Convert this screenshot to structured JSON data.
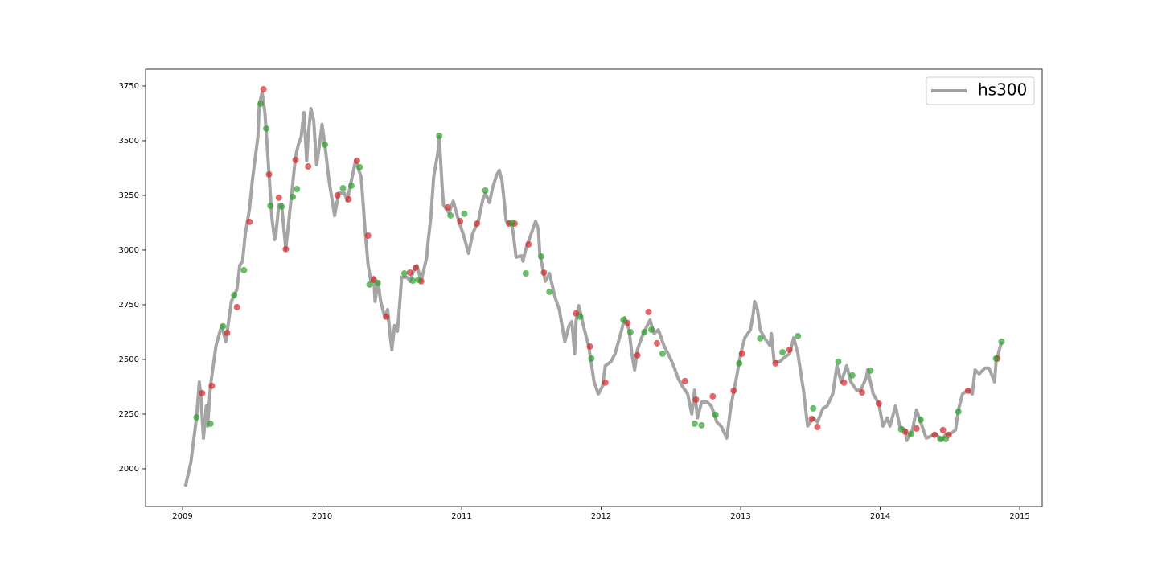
{
  "chart_data": {
    "type": "line",
    "series": [
      {
        "name": "hs300",
        "color": "#a0a0a0",
        "x": [
          2009.02,
          2009.06,
          2009.1,
          2009.12,
          2009.13,
          2009.15,
          2009.17,
          2009.18,
          2009.2,
          2009.24,
          2009.28,
          2009.31,
          2009.35,
          2009.39,
          2009.41,
          2009.43,
          2009.45,
          2009.48,
          2009.5,
          2009.54,
          2009.55,
          2009.57,
          2009.59,
          2009.61,
          2009.64,
          2009.66,
          2009.67,
          2009.69,
          2009.71,
          2009.74,
          2009.78,
          2009.81,
          2009.83,
          2009.85,
          2009.87,
          2009.89,
          2009.9,
          2009.92,
          2009.94,
          2009.96,
          2009.97,
          2010.0,
          2010.02,
          2010.05,
          2010.09,
          2010.12,
          2010.16,
          2010.18,
          2010.21,
          2010.24,
          2010.28,
          2010.31,
          2010.33,
          2010.35,
          2010.37,
          2010.38,
          2010.4,
          2010.42,
          2010.45,
          2010.47,
          2010.49,
          2010.5,
          2010.52,
          2010.54,
          2010.56,
          2010.57,
          2010.61,
          2010.63,
          2010.66,
          2010.68,
          2010.71,
          2010.75,
          2010.76,
          2010.78,
          2010.8,
          2010.83,
          2010.84,
          2010.86,
          2010.87,
          2010.91,
          2010.94,
          2010.98,
          2011.01,
          2011.05,
          2011.08,
          2011.12,
          2011.15,
          2011.17,
          2011.2,
          2011.22,
          2011.25,
          2011.27,
          2011.29,
          2011.32,
          2011.36,
          2011.37,
          2011.39,
          2011.43,
          2011.44,
          2011.46,
          2011.5,
          2011.53,
          2011.55,
          2011.56,
          2011.6,
          2011.63,
          2011.67,
          2011.7,
          2011.74,
          2011.77,
          2011.79,
          2011.81,
          2011.82,
          2011.84,
          2011.88,
          2011.91,
          2011.95,
          2011.98,
          2012.01,
          2012.03,
          2012.07,
          2012.1,
          2012.14,
          2012.17,
          2012.2,
          2012.22,
          2012.24,
          2012.26,
          2012.29,
          2012.33,
          2012.35,
          2012.38,
          2012.41,
          2012.45,
          2012.48,
          2012.52,
          2012.55,
          2012.58,
          2012.62,
          2012.65,
          2012.67,
          2012.69,
          2012.72,
          2012.76,
          2012.79,
          2012.83,
          2012.86,
          2012.9,
          2012.93,
          2012.97,
          2013.0,
          2013.03,
          2013.07,
          2013.09,
          2013.1,
          2013.12,
          2013.14,
          2013.17,
          2013.21,
          2013.22,
          2013.24,
          2013.28,
          2013.31,
          2013.35,
          2013.38,
          2013.41,
          2013.45,
          2013.48,
          2013.52,
          2013.55,
          2013.59,
          2013.62,
          2013.66,
          2013.69,
          2013.72,
          2013.76,
          2013.79,
          2013.83,
          2013.86,
          2013.9,
          2013.91,
          2013.95,
          2013.99,
          2014.02,
          2014.05,
          2014.07,
          2014.11,
          2014.14,
          2014.18,
          2014.19,
          2014.23,
          2014.26,
          2014.3,
          2014.33,
          2014.37,
          2014.4,
          2014.44,
          2014.47,
          2014.5,
          2014.54,
          2014.56,
          2014.59,
          2014.63,
          2014.66,
          2014.68,
          2014.71,
          2014.75,
          2014.78,
          2014.82,
          2014.83,
          2014.87
        ],
        "values": [
          1919,
          2030,
          2232,
          2397,
          2342,
          2140,
          2287,
          2195,
          2379,
          2563,
          2655,
          2581,
          2765,
          2820,
          2930,
          2949,
          3077,
          3188,
          3316,
          3518,
          3665,
          3721,
          3629,
          3445,
          3151,
          3048,
          3077,
          3206,
          3206,
          3004,
          3243,
          3427,
          3482,
          3518,
          3629,
          3408,
          3518,
          3647,
          3592,
          3390,
          3427,
          3574,
          3482,
          3316,
          3158,
          3261,
          3261,
          3224,
          3316,
          3408,
          3335,
          3077,
          2930,
          2857,
          2875,
          2765,
          2857,
          2765,
          2691,
          2728,
          2599,
          2544,
          2655,
          2629,
          2783,
          2875,
          2875,
          2857,
          2912,
          2930,
          2857,
          2967,
          3041,
          3151,
          3335,
          3445,
          3518,
          3298,
          3206,
          3169,
          3224,
          3132,
          3077,
          2985,
          3077,
          3132,
          3224,
          3261,
          3217,
          3279,
          3342,
          3364,
          3316,
          3132,
          3114,
          3077,
          2967,
          2974,
          2949,
          3004,
          3077,
          3132,
          3096,
          2985,
          2857,
          2893,
          2783,
          2728,
          2581,
          2655,
          2673,
          2526,
          2673,
          2746,
          2636,
          2563,
          2397,
          2342,
          2379,
          2471,
          2489,
          2526,
          2618,
          2691,
          2636,
          2526,
          2452,
          2544,
          2599,
          2655,
          2680,
          2618,
          2636,
          2563,
          2526,
          2471,
          2416,
          2379,
          2342,
          2250,
          2360,
          2232,
          2305,
          2305,
          2287,
          2213,
          2195,
          2140,
          2287,
          2416,
          2526,
          2599,
          2636,
          2710,
          2765,
          2728,
          2636,
          2599,
          2563,
          2618,
          2489,
          2489,
          2507,
          2526,
          2599,
          2526,
          2360,
          2195,
          2232,
          2213,
          2276,
          2287,
          2342,
          2471,
          2397,
          2471,
          2397,
          2360,
          2360,
          2416,
          2452,
          2342,
          2298,
          2195,
          2232,
          2195,
          2287,
          2195,
          2177,
          2129,
          2177,
          2269,
          2195,
          2140,
          2151,
          2159,
          2129,
          2159,
          2159,
          2177,
          2269,
          2342,
          2360,
          2342,
          2452,
          2434,
          2460,
          2460,
          2397,
          2489,
          2581
        ]
      }
    ],
    "scatter": [
      {
        "color": "#d62728",
        "x": [
          2009.14,
          2009.21,
          2009.32,
          2009.39,
          2009.48,
          2009.58,
          2009.62,
          2009.69,
          2009.74,
          2009.81,
          2009.9,
          2010.11,
          2010.19,
          2010.25,
          2010.33,
          2010.37,
          2010.46,
          2010.63,
          2010.67,
          2010.71,
          2010.9,
          2010.99,
          2011.11,
          2011.34,
          2011.38,
          2011.48,
          2011.59,
          2011.82,
          2011.92,
          2012.03,
          2012.19,
          2012.26,
          2012.34,
          2012.4,
          2012.6,
          2012.68,
          2012.8,
          2012.95,
          2013.01,
          2013.25,
          2013.35,
          2013.51,
          2013.55,
          2013.74,
          2013.87,
          2013.99,
          2014.18,
          2014.26,
          2014.39,
          2014.45,
          2014.49,
          2014.63,
          2014.84
        ],
        "values": [
          2346,
          2379,
          2621,
          2739,
          3129,
          3735,
          3346,
          3239,
          3004,
          3412,
          3382,
          3250,
          3232,
          3408,
          3066,
          2864,
          2695,
          2897,
          2919,
          2857,
          3195,
          3132,
          3121,
          3121,
          3121,
          3026,
          2897,
          2710,
          2559,
          2394,
          2666,
          2519,
          2717,
          2574,
          2401,
          2316,
          2331,
          2357,
          2526,
          2482,
          2544,
          2228,
          2191,
          2394,
          2349,
          2298,
          2169,
          2184,
          2155,
          2177,
          2155,
          2357,
          2504
        ]
      },
      {
        "color": "#2ca02c",
        "x": [
          2009.1,
          2009.2,
          2009.29,
          2009.37,
          2009.44,
          2009.56,
          2009.6,
          2009.63,
          2009.71,
          2009.79,
          2009.82,
          2010.02,
          2010.15,
          2010.21,
          2010.27,
          2010.34,
          2010.4,
          2010.59,
          2010.65,
          2010.69,
          2010.84,
          2010.92,
          2011.02,
          2011.17,
          2011.36,
          2011.46,
          2011.57,
          2011.63,
          2011.85,
          2011.93,
          2012.16,
          2012.21,
          2012.31,
          2012.36,
          2012.44,
          2012.67,
          2012.72,
          2012.82,
          2012.99,
          2013.14,
          2013.3,
          2013.41,
          2013.52,
          2013.7,
          2013.8,
          2013.93,
          2014.15,
          2014.22,
          2014.29,
          2014.43,
          2014.47,
          2014.56,
          2014.83,
          2014.87
        ],
        "values": [
          2235,
          2206,
          2651,
          2794,
          2908,
          3669,
          3555,
          3202,
          3199,
          3243,
          3279,
          3482,
          3283,
          3294,
          3379,
          2842,
          2849,
          2893,
          2860,
          2864,
          3522,
          3158,
          3166,
          3272,
          3125,
          2893,
          2971,
          2809,
          2695,
          2504,
          2680,
          2625,
          2625,
          2636,
          2526,
          2206,
          2199,
          2247,
          2482,
          2596,
          2533,
          2607,
          2276,
          2489,
          2427,
          2449,
          2180,
          2159,
          2224,
          2136,
          2136,
          2261,
          2504,
          2581
        ]
      }
    ],
    "xlim": [
      2008.735,
      2015.161
    ],
    "ylim": [
      1827,
      3827
    ],
    "xticks": [
      2009,
      2010,
      2011,
      2012,
      2013,
      2014,
      2015
    ],
    "yticks": [
      2000,
      2250,
      2500,
      2750,
      3000,
      3250,
      3500,
      3750
    ],
    "grid": false,
    "legend": "upper right"
  }
}
